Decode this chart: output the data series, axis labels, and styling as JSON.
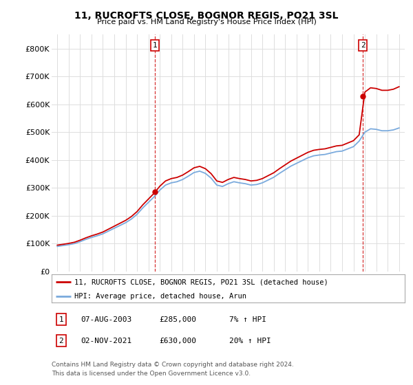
{
  "title": "11, RUCROFTS CLOSE, BOGNOR REGIS, PO21 3SL",
  "subtitle": "Price paid vs. HM Land Registry's House Price Index (HPI)",
  "background_color": "#ffffff",
  "grid_color": "#dddddd",
  "price_paid_color": "#cc0000",
  "hpi_color": "#7aaadd",
  "sale1_price": 285000,
  "sale2_price": 630000,
  "sale1_date_f": 2003.583,
  "sale2_date_f": 2021.833,
  "sale1_label": "07-AUG-2003",
  "sale1_price_label": "£285,000",
  "sale1_hpi_label": "7% ↑ HPI",
  "sale2_label": "02-NOV-2021",
  "sale2_price_label": "£630,000",
  "sale2_hpi_label": "20% ↑ HPI",
  "legend_line1": "11, RUCROFTS CLOSE, BOGNOR REGIS, PO21 3SL (detached house)",
  "legend_line2": "HPI: Average price, detached house, Arun",
  "footer1": "Contains HM Land Registry data © Crown copyright and database right 2024.",
  "footer2": "This data is licensed under the Open Government Licence v3.0.",
  "ylim_min": 0,
  "ylim_max": 850000,
  "hpi_dates": [
    1995.0,
    1995.5,
    1996.0,
    1996.5,
    1997.0,
    1997.5,
    1998.0,
    1998.5,
    1999.0,
    1999.5,
    2000.0,
    2000.5,
    2001.0,
    2001.5,
    2002.0,
    2002.5,
    2003.0,
    2003.5,
    2004.0,
    2004.5,
    2005.0,
    2005.5,
    2006.0,
    2006.5,
    2007.0,
    2007.5,
    2008.0,
    2008.5,
    2009.0,
    2009.5,
    2010.0,
    2010.5,
    2011.0,
    2011.5,
    2012.0,
    2012.5,
    2013.0,
    2013.5,
    2014.0,
    2014.5,
    2015.0,
    2015.5,
    2016.0,
    2016.5,
    2017.0,
    2017.5,
    2018.0,
    2018.5,
    2019.0,
    2019.5,
    2020.0,
    2020.5,
    2021.0,
    2021.5,
    2022.0,
    2022.5,
    2023.0,
    2023.5,
    2024.0,
    2024.5,
    2025.0
  ],
  "hpi_values": [
    90000,
    93000,
    96000,
    100000,
    107000,
    115000,
    122000,
    128000,
    135000,
    145000,
    155000,
    165000,
    175000,
    188000,
    205000,
    228000,
    248000,
    268000,
    292000,
    310000,
    318000,
    322000,
    330000,
    342000,
    355000,
    360000,
    352000,
    335000,
    310000,
    305000,
    315000,
    322000,
    318000,
    315000,
    310000,
    312000,
    318000,
    328000,
    338000,
    352000,
    365000,
    378000,
    388000,
    398000,
    408000,
    415000,
    418000,
    420000,
    425000,
    430000,
    432000,
    440000,
    448000,
    468000,
    500000,
    512000,
    510000,
    505000,
    505000,
    508000,
    515000
  ]
}
